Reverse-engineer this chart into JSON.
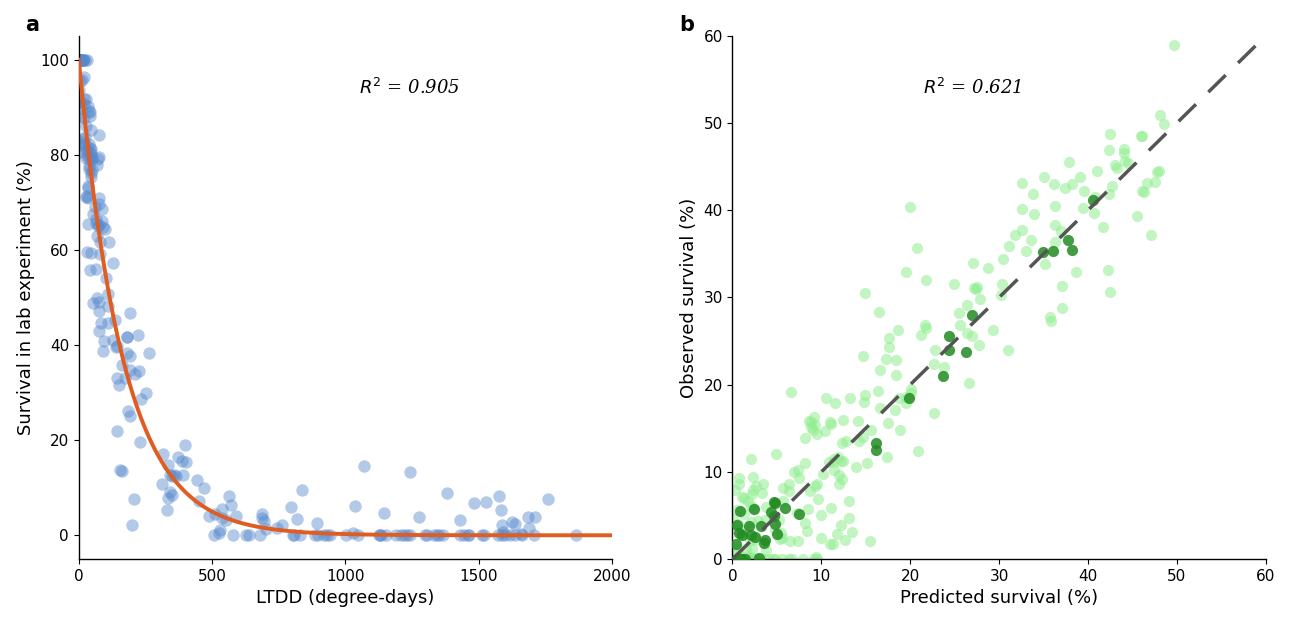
{
  "panel_a": {
    "label": "a",
    "xlabel": "LTDD (degree-days)",
    "ylabel": "Survival in lab experiment (%)",
    "r2_text": "$R^2$ = 0.905",
    "xlim": [
      0,
      2000
    ],
    "ylim": [
      -5,
      105
    ],
    "xticks": [
      0,
      500,
      1000,
      1500,
      2000
    ],
    "yticks": [
      0,
      20,
      40,
      60,
      80,
      100
    ],
    "scatter_color": "#5588cc",
    "scatter_alpha": 0.45,
    "scatter_size": 80,
    "curve_color": "#e05c20",
    "curve_lw": 2.8,
    "decay_a": 100,
    "decay_b": 0.006
  },
  "panel_b": {
    "label": "b",
    "xlabel": "Predicted survival (%)",
    "ylabel": "Observed survival (%)",
    "r2_text": "$R^2$ = 0.621",
    "xlim": [
      0,
      60
    ],
    "ylim": [
      0,
      60
    ],
    "xticks": [
      0,
      10,
      20,
      30,
      40,
      50,
      60
    ],
    "yticks": [
      0,
      10,
      20,
      30,
      40,
      50,
      60
    ],
    "scatter_color_light": "#90ee90",
    "scatter_color_dark": "#228b22",
    "scatter_alpha_light": 0.55,
    "scatter_alpha_dark": 0.85,
    "scatter_size": 65,
    "line_color": "#555555",
    "line_lw": 2.5
  },
  "background_color": "#ffffff",
  "font_size_label": 13,
  "font_size_tick": 11,
  "font_size_panel": 15,
  "font_size_r2": 13
}
